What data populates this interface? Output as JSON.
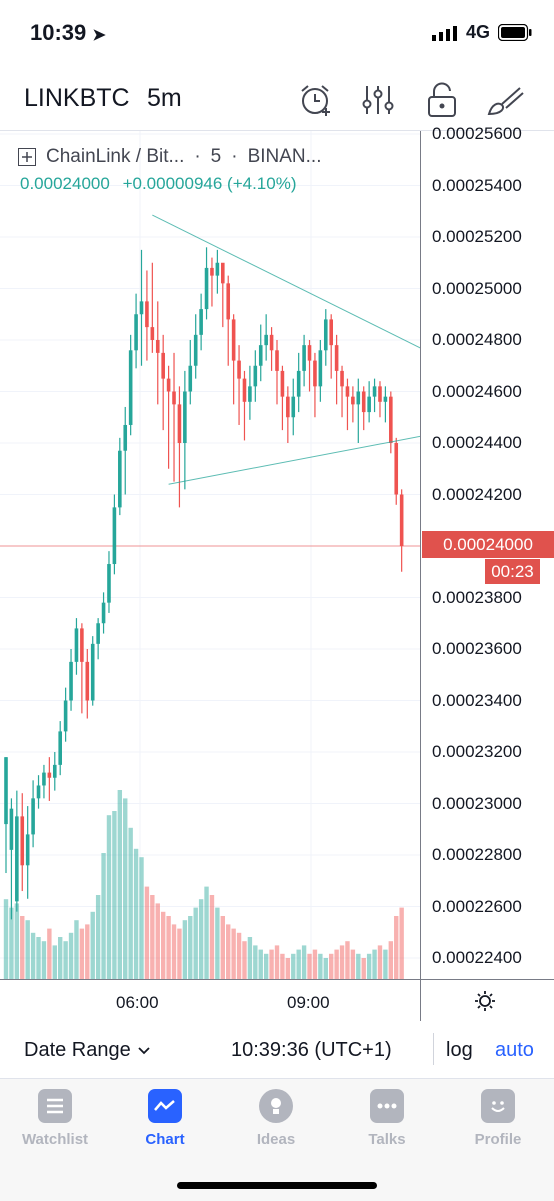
{
  "status_bar": {
    "time": "10:39",
    "network": "4G"
  },
  "toolbar": {
    "symbol": "LINKBTC",
    "interval": "5m",
    "icons": [
      "alarm-add-icon",
      "indicators-icon",
      "unlock-icon",
      "drawing-brush-icon"
    ]
  },
  "legend": {
    "title": "ChainLink / Bit...",
    "interval": "5",
    "exchange": "BINAN...",
    "price": "0.00024000",
    "change": "+0.00000946 (+4.10%)"
  },
  "chart_data": {
    "type": "candlestick",
    "title": "ChainLink / Bit...",
    "xlabel": "",
    "ylabel": "",
    "y_ticks": [
      "0.00025600",
      "0.00025400",
      "0.00025200",
      "0.00025000",
      "0.00024800",
      "0.00024600",
      "0.00024400",
      "0.00024200",
      "0.00024000",
      "0.00023800",
      "0.00023600",
      "0.00023400",
      "0.00023200",
      "0.00023000",
      "0.00022800",
      "0.00022600",
      "0.00022400"
    ],
    "ylim": [
      0.000223,
      0.0002565
    ],
    "x_ticks": [
      "06:00",
      "09:00"
    ],
    "last_price": "0.00024000",
    "countdown": "00:23",
    "up_color": "#26a69a",
    "down_color": "#ef5350",
    "candles": [
      [
        0.0002292,
        0.0002318,
        0.0002318,
        0.0002273
      ],
      [
        0.0002282,
        0.0002298,
        0.0002302,
        0.0002255
      ],
      [
        0.0002262,
        0.0002295,
        0.0002305,
        0.0002258
      ],
      [
        0.0002295,
        0.0002276,
        0.0002304,
        0.0002266
      ],
      [
        0.0002276,
        0.0002288,
        0.0002299,
        0.0002263
      ],
      [
        0.0002288,
        0.0002302,
        0.0002309,
        0.0002283
      ],
      [
        0.0002302,
        0.0002307,
        0.0002311,
        0.0002298
      ],
      [
        0.0002307,
        0.0002312,
        0.0002315,
        0.0002302
      ],
      [
        0.0002312,
        0.000231,
        0.0002318,
        0.0002301
      ],
      [
        0.000231,
        0.0002315,
        0.000232,
        0.0002305
      ],
      [
        0.0002315,
        0.0002328,
        0.0002332,
        0.0002311
      ],
      [
        0.0002328,
        0.000234,
        0.0002345,
        0.0002324
      ],
      [
        0.000234,
        0.0002355,
        0.000236,
        0.0002336
      ],
      [
        0.0002355,
        0.0002368,
        0.0002372,
        0.000235
      ],
      [
        0.0002368,
        0.0002355,
        0.000237,
        0.0002335
      ],
      [
        0.0002355,
        0.000234,
        0.000236,
        0.0002333
      ],
      [
        0.000234,
        0.0002362,
        0.0002365,
        0.0002338
      ],
      [
        0.0002362,
        0.000237,
        0.0002372,
        0.0002356
      ],
      [
        0.000237,
        0.0002378,
        0.0002382,
        0.0002366
      ],
      [
        0.0002378,
        0.0002393,
        0.0002398,
        0.0002374
      ],
      [
        0.0002393,
        0.0002415,
        0.000242,
        0.0002389
      ],
      [
        0.0002415,
        0.0002437,
        0.0002442,
        0.0002412
      ],
      [
        0.0002437,
        0.0002447,
        0.0002454,
        0.000242
      ],
      [
        0.0002447,
        0.0002476,
        0.0002482,
        0.0002443
      ],
      [
        0.0002476,
        0.000249,
        0.0002498,
        0.0002469
      ],
      [
        0.000249,
        0.0002495,
        0.0002515,
        0.000247
      ],
      [
        0.0002495,
        0.0002485,
        0.0002507,
        0.0002472
      ],
      [
        0.0002485,
        0.000248,
        0.000251,
        0.0002475
      ],
      [
        0.000248,
        0.0002475,
        0.0002495,
        0.0002455
      ],
      [
        0.0002475,
        0.0002465,
        0.0002482,
        0.0002445
      ],
      [
        0.0002465,
        0.000246,
        0.000247,
        0.000243
      ],
      [
        0.000246,
        0.0002455,
        0.0002475,
        0.0002425
      ],
      [
        0.0002455,
        0.000244,
        0.0002462,
        0.0002415
      ],
      [
        0.000244,
        0.000246,
        0.0002468,
        0.0002422
      ],
      [
        0.000246,
        0.000247,
        0.000248,
        0.0002455
      ],
      [
        0.000247,
        0.0002482,
        0.000249,
        0.0002465
      ],
      [
        0.0002482,
        0.0002492,
        0.0002498,
        0.0002476
      ],
      [
        0.0002492,
        0.0002508,
        0.0002516,
        0.0002488
      ],
      [
        0.0002508,
        0.0002505,
        0.0002512,
        0.0002493
      ],
      [
        0.0002505,
        0.000251,
        0.0002515,
        0.0002498
      ],
      [
        0.000251,
        0.0002502,
        0.0002508,
        0.0002485
      ],
      [
        0.0002502,
        0.0002488,
        0.0002505,
        0.000247
      ],
      [
        0.0002488,
        0.0002472,
        0.000249,
        0.0002455
      ],
      [
        0.0002472,
        0.0002465,
        0.0002478,
        0.0002447
      ],
      [
        0.0002465,
        0.0002456,
        0.0002468,
        0.0002441
      ],
      [
        0.0002456,
        0.0002462,
        0.000247,
        0.0002449
      ],
      [
        0.0002462,
        0.000247,
        0.0002476,
        0.0002456
      ],
      [
        0.000247,
        0.0002478,
        0.0002486,
        0.0002464
      ],
      [
        0.0002478,
        0.0002482,
        0.000249,
        0.0002472
      ],
      [
        0.0002482,
        0.0002476,
        0.0002485,
        0.0002468
      ],
      [
        0.0002476,
        0.0002468,
        0.000248,
        0.0002455
      ],
      [
        0.0002468,
        0.0002458,
        0.000247,
        0.0002445
      ],
      [
        0.0002458,
        0.000245,
        0.0002462,
        0.000244
      ],
      [
        0.000245,
        0.0002458,
        0.0002465,
        0.0002443
      ],
      [
        0.0002458,
        0.0002468,
        0.0002475,
        0.0002452
      ],
      [
        0.0002468,
        0.0002478,
        0.0002482,
        0.0002462
      ],
      [
        0.0002478,
        0.0002472,
        0.000248,
        0.000246
      ],
      [
        0.0002472,
        0.0002462,
        0.0002475,
        0.000245
      ],
      [
        0.0002462,
        0.0002476,
        0.000248,
        0.0002456
      ],
      [
        0.0002476,
        0.0002488,
        0.0002492,
        0.000247
      ],
      [
        0.0002488,
        0.0002478,
        0.000249,
        0.0002465
      ],
      [
        0.0002478,
        0.0002468,
        0.0002482,
        0.0002455
      ],
      [
        0.0002468,
        0.0002462,
        0.000247,
        0.000245
      ],
      [
        0.0002462,
        0.0002458,
        0.0002465,
        0.0002445
      ],
      [
        0.0002458,
        0.0002455,
        0.0002462,
        0.0002448
      ],
      [
        0.0002455,
        0.000246,
        0.0002465,
        0.000244
      ],
      [
        0.000246,
        0.0002452,
        0.0002462,
        0.0002445
      ],
      [
        0.0002452,
        0.0002458,
        0.0002464,
        0.0002448
      ],
      [
        0.0002458,
        0.0002462,
        0.0002465,
        0.0002452
      ],
      [
        0.0002462,
        0.0002456,
        0.0002464,
        0.000245
      ],
      [
        0.0002456,
        0.0002458,
        0.0002462,
        0.0002448
      ],
      [
        0.0002458,
        0.000244,
        0.000246,
        0.0002436
      ],
      [
        0.000244,
        0.000242,
        0.0002442,
        0.0002416
      ],
      [
        0.000242,
        0.00024,
        0.0002422,
        0.000239
      ]
    ],
    "volume": [
      0.38,
      0.34,
      0.36,
      0.3,
      0.28,
      0.22,
      0.2,
      0.18,
      0.24,
      0.16,
      0.2,
      0.18,
      0.22,
      0.28,
      0.24,
      0.26,
      0.32,
      0.4,
      0.6,
      0.78,
      0.8,
      0.9,
      0.86,
      0.72,
      0.62,
      0.58,
      0.44,
      0.4,
      0.36,
      0.32,
      0.3,
      0.26,
      0.24,
      0.28,
      0.3,
      0.34,
      0.38,
      0.44,
      0.4,
      0.34,
      0.3,
      0.26,
      0.24,
      0.22,
      0.18,
      0.2,
      0.16,
      0.14,
      0.12,
      0.14,
      0.16,
      0.12,
      0.1,
      0.12,
      0.14,
      0.16,
      0.12,
      0.14,
      0.12,
      0.1,
      0.12,
      0.14,
      0.16,
      0.18,
      0.14,
      0.12,
      0.1,
      0.12,
      0.14,
      0.16,
      0.14,
      0.18,
      0.3,
      0.34
    ],
    "trendlines": [
      {
        "from": [
          0.00025285,
          27
        ],
        "to": [
          0.0002468,
          85
        ]
      },
      {
        "from": [
          0.0002424,
          30
        ],
        "to": [
          0.0002446,
          85
        ]
      }
    ]
  },
  "time_axis": {
    "labels": [
      "06:00",
      "09:00"
    ]
  },
  "bottom_bar": {
    "date_range": "Date Range",
    "clock": "10:39:36 (UTC+1)",
    "log": "log",
    "auto": "auto"
  },
  "tabs": [
    {
      "label": "Watchlist",
      "icon": "watchlist-icon",
      "active": false
    },
    {
      "label": "Chart",
      "icon": "chart-icon",
      "active": true
    },
    {
      "label": "Ideas",
      "icon": "ideas-icon",
      "active": false
    },
    {
      "label": "Talks",
      "icon": "talks-icon",
      "active": false
    },
    {
      "label": "Profile",
      "icon": "profile-icon",
      "active": false
    }
  ]
}
